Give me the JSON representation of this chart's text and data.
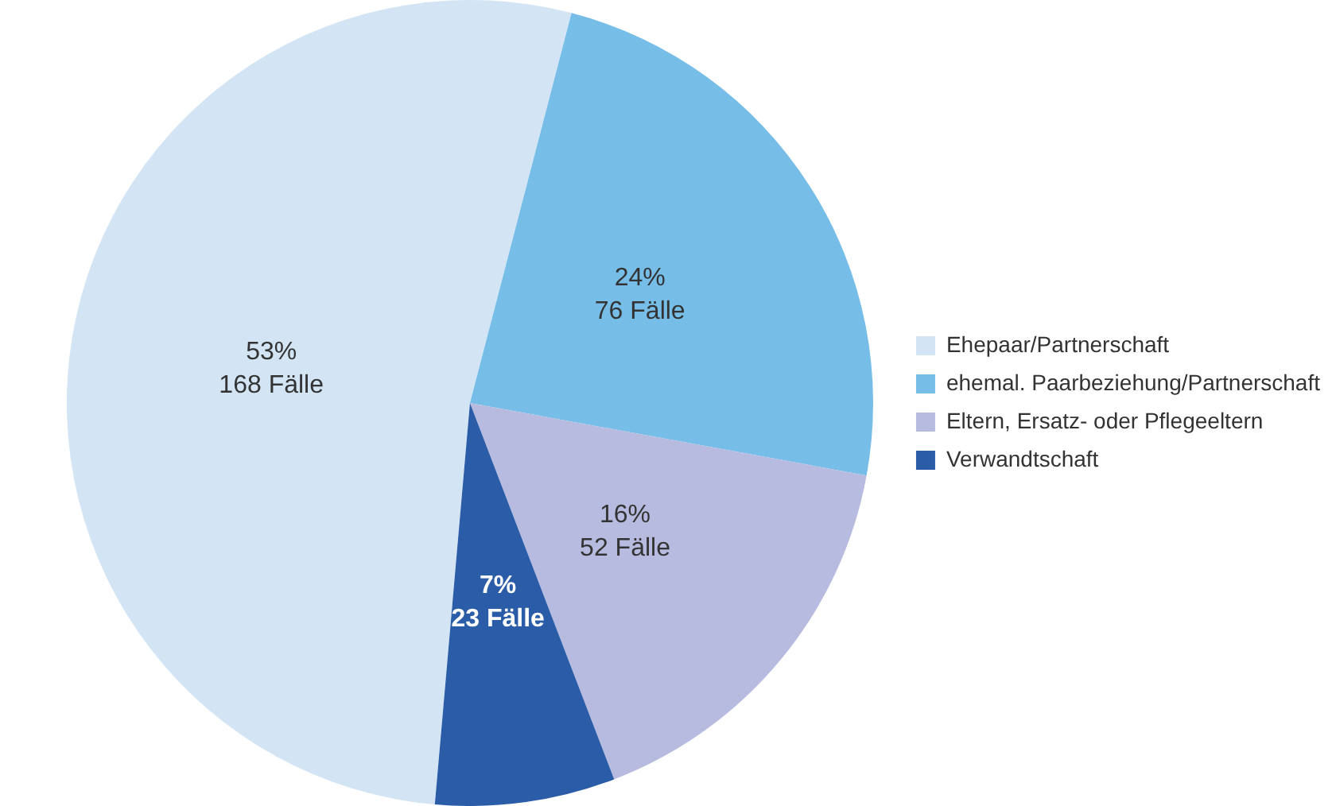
{
  "chart_data": {
    "type": "pie",
    "categories": [
      "Ehepaar/Partnerschaft",
      "ehemal. Paarbeziehung/Partnerschaft",
      "Eltern, Ersatz- oder Pflegeeltern",
      "Verwandtschaft"
    ],
    "values": [
      168,
      76,
      52,
      23
    ],
    "colors": [
      "#d3e5f5",
      "#76bde8",
      "#b7bbe0",
      "#2a5ca8"
    ],
    "value_labels": [
      "53%\n168 Fälle",
      "24%\n76 Fälle",
      "16%\n52 Fälle",
      "7%\n23 Fälle"
    ],
    "legend": "right"
  }
}
